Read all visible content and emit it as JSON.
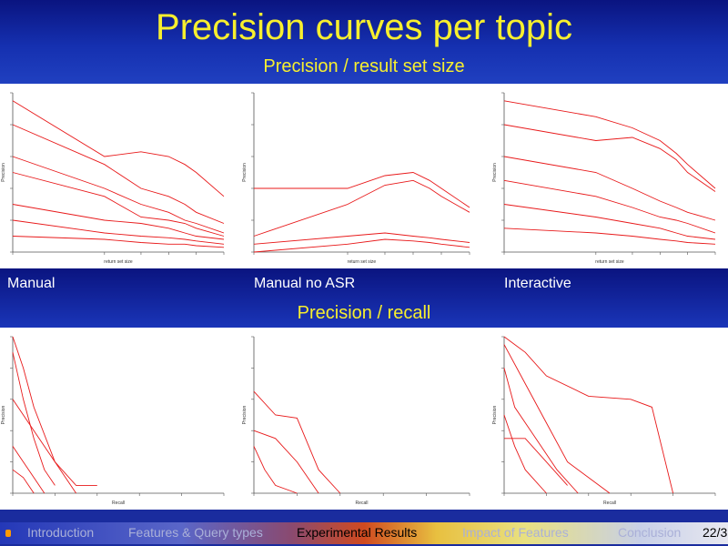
{
  "slide": {
    "title": "Precision curves per topic",
    "subtitle_top": "Precision / result set size",
    "subtitle_bottom": "Precision / recall",
    "panel_labels": [
      "Manual",
      "Manual no ASR",
      "Interactive"
    ]
  },
  "navigation": {
    "items": [
      "Introduction",
      "Features & Query types",
      "Experimental Results",
      "Impact of Features",
      "Conclusion"
    ],
    "active_index": 2,
    "page": "22/3"
  },
  "colors": {
    "title": "#f7ef2e",
    "curve": "#e8191a",
    "band": "#0d1a8c"
  },
  "chart_data": [
    {
      "type": "line",
      "panel": "Manual",
      "xlabel": "return set size",
      "ylabel": "Precision",
      "series": [
        {
          "x": [
            1,
            10,
            25,
            50,
            75,
            100,
            200
          ],
          "values": [
            0.95,
            0.6,
            0.63,
            0.6,
            0.55,
            0.5,
            0.35
          ]
        },
        {
          "x": [
            1,
            10,
            25,
            50,
            75,
            100,
            200
          ],
          "values": [
            0.8,
            0.55,
            0.4,
            0.35,
            0.3,
            0.25,
            0.18
          ]
        },
        {
          "x": [
            1,
            10,
            25,
            50,
            75,
            100,
            200
          ],
          "values": [
            0.6,
            0.4,
            0.3,
            0.25,
            0.2,
            0.18,
            0.12
          ]
        },
        {
          "x": [
            1,
            10,
            25,
            50,
            75,
            100,
            200
          ],
          "values": [
            0.5,
            0.35,
            0.22,
            0.2,
            0.18,
            0.15,
            0.1
          ]
        },
        {
          "x": [
            1,
            10,
            25,
            50,
            75,
            100,
            200
          ],
          "values": [
            0.3,
            0.2,
            0.18,
            0.15,
            0.12,
            0.1,
            0.08
          ]
        },
        {
          "x": [
            1,
            10,
            25,
            50,
            75,
            100,
            200
          ],
          "values": [
            0.2,
            0.12,
            0.1,
            0.09,
            0.08,
            0.07,
            0.05
          ]
        },
        {
          "x": [
            1,
            10,
            25,
            50,
            75,
            100,
            200
          ],
          "values": [
            0.1,
            0.08,
            0.06,
            0.05,
            0.05,
            0.04,
            0.03
          ]
        }
      ]
    },
    {
      "type": "line",
      "panel": "Manual no ASR",
      "xlabel": "return set size",
      "ylabel": "Precision",
      "series": [
        {
          "x": [
            1,
            10,
            25,
            50,
            75,
            100,
            200
          ],
          "values": [
            0.4,
            0.4,
            0.48,
            0.5,
            0.45,
            0.4,
            0.28
          ]
        },
        {
          "x": [
            1,
            10,
            25,
            50,
            75,
            100,
            200
          ],
          "values": [
            0.1,
            0.3,
            0.42,
            0.45,
            0.4,
            0.35,
            0.25
          ]
        },
        {
          "x": [
            1,
            10,
            25,
            50,
            75,
            100,
            200
          ],
          "values": [
            0.05,
            0.1,
            0.12,
            0.1,
            0.09,
            0.08,
            0.06
          ]
        },
        {
          "x": [
            1,
            10,
            25,
            50,
            75,
            100,
            200
          ],
          "values": [
            0.0,
            0.05,
            0.08,
            0.07,
            0.06,
            0.05,
            0.03
          ]
        }
      ]
    },
    {
      "type": "line",
      "panel": "Interactive",
      "xlabel": "return set size",
      "ylabel": "Precision",
      "series": [
        {
          "x": [
            1,
            10,
            25,
            50,
            75,
            100,
            200
          ],
          "values": [
            0.95,
            0.85,
            0.78,
            0.7,
            0.62,
            0.55,
            0.4
          ]
        },
        {
          "x": [
            1,
            10,
            25,
            50,
            75,
            100,
            200
          ],
          "values": [
            0.8,
            0.7,
            0.72,
            0.65,
            0.58,
            0.5,
            0.38
          ]
        },
        {
          "x": [
            1,
            10,
            25,
            50,
            75,
            100,
            200
          ],
          "values": [
            0.6,
            0.5,
            0.4,
            0.32,
            0.28,
            0.25,
            0.2
          ]
        },
        {
          "x": [
            1,
            10,
            25,
            50,
            75,
            100,
            200
          ],
          "values": [
            0.45,
            0.35,
            0.28,
            0.22,
            0.2,
            0.18,
            0.12
          ]
        },
        {
          "x": [
            1,
            10,
            25,
            50,
            75,
            100,
            200
          ],
          "values": [
            0.3,
            0.22,
            0.18,
            0.15,
            0.12,
            0.1,
            0.08
          ]
        },
        {
          "x": [
            1,
            10,
            25,
            50,
            75,
            100,
            200
          ],
          "values": [
            0.15,
            0.12,
            0.1,
            0.08,
            0.07,
            0.06,
            0.05
          ]
        }
      ]
    },
    {
      "type": "line",
      "panel": "Manual",
      "xlabel": "Recall",
      "ylabel": "Precision",
      "series": [
        {
          "x": [
            0,
            0.05,
            0.1,
            0.2,
            0.3,
            0.4
          ],
          "values": [
            1.0,
            0.8,
            0.55,
            0.2,
            0.05,
            0.05
          ]
        },
        {
          "x": [
            0,
            0.05,
            0.1,
            0.15,
            0.2
          ],
          "values": [
            0.9,
            0.6,
            0.35,
            0.15,
            0.05
          ]
        },
        {
          "x": [
            0,
            0.1,
            0.2,
            0.3
          ],
          "values": [
            0.6,
            0.4,
            0.2,
            0.0
          ]
        },
        {
          "x": [
            0,
            0.05,
            0.1,
            0.15
          ],
          "values": [
            0.3,
            0.2,
            0.1,
            0.0
          ]
        },
        {
          "x": [
            0,
            0.05,
            0.1
          ],
          "values": [
            0.15,
            0.1,
            0.0
          ]
        }
      ]
    },
    {
      "type": "line",
      "panel": "Manual no ASR",
      "xlabel": "Recall",
      "ylabel": "Precision",
      "series": [
        {
          "x": [
            0,
            0.1,
            0.2,
            0.3,
            0.4
          ],
          "values": [
            0.65,
            0.5,
            0.48,
            0.15,
            0.0
          ]
        },
        {
          "x": [
            0,
            0.1,
            0.2,
            0.3
          ],
          "values": [
            0.4,
            0.35,
            0.2,
            0.0
          ]
        },
        {
          "x": [
            0,
            0.05,
            0.1,
            0.2
          ],
          "values": [
            0.3,
            0.15,
            0.05,
            0.0
          ]
        }
      ]
    },
    {
      "type": "line",
      "panel": "Interactive",
      "xlabel": "Recall",
      "ylabel": "Precision",
      "series": [
        {
          "x": [
            0,
            0.1,
            0.2,
            0.4,
            0.6,
            0.7,
            0.8
          ],
          "values": [
            1.0,
            0.9,
            0.75,
            0.62,
            0.6,
            0.55,
            0.0
          ]
        },
        {
          "x": [
            0,
            0.1,
            0.2,
            0.3,
            0.5
          ],
          "values": [
            0.95,
            0.7,
            0.45,
            0.2,
            0.0
          ]
        },
        {
          "x": [
            0,
            0.05,
            0.15,
            0.25,
            0.35
          ],
          "values": [
            0.8,
            0.55,
            0.35,
            0.15,
            0.0
          ]
        },
        {
          "x": [
            0,
            0.05,
            0.1,
            0.2
          ],
          "values": [
            0.5,
            0.3,
            0.15,
            0.0
          ]
        },
        {
          "x": [
            0,
            0.1,
            0.2,
            0.3
          ],
          "values": [
            0.35,
            0.35,
            0.2,
            0.05
          ]
        }
      ]
    }
  ]
}
